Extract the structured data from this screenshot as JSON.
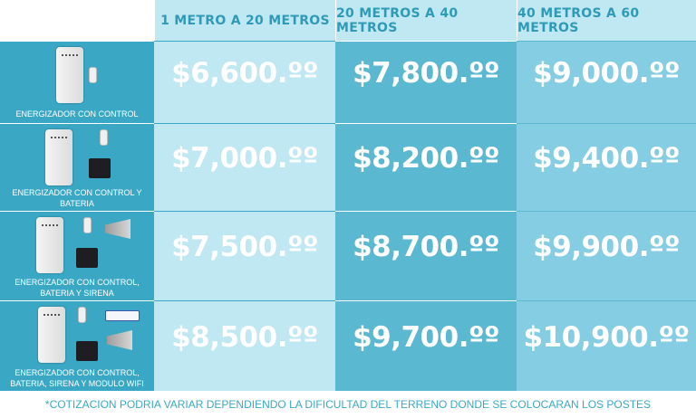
{
  "headers": [
    "1 METRO A 20 METROS",
    "20 METROS A 40 METROS",
    "40 METROS A 60 METROS"
  ],
  "rows": [
    {
      "label": "ENERGIZADOR CON CONTROL",
      "prices": [
        "$6,600.ºº",
        "$7,800.ºº",
        "$9,000.ºº"
      ]
    },
    {
      "label": "ENERGIZADOR CON CONTROL Y BATERIA",
      "prices": [
        "$7,000.ºº",
        "$8,200.ºº",
        "$9,400.ºº"
      ]
    },
    {
      "label": "ENERGIZADOR CON CONTROL, BATERIA Y SIRENA",
      "prices": [
        "$7,500.ºº",
        "$8,700.ºº",
        "$9,900.ºº"
      ]
    },
    {
      "label": "ENERGIZADOR CON CONTROL, BATERIA, SIRENA Y MODULO WIFI",
      "prices": [
        "$8,500.ºº",
        "$9,700.ºº",
        "$10,900.ºº"
      ]
    }
  ],
  "footnote": "*COTIZACION PODRIA VARIAR DEPENDIENDO LA DIFICULTAD DEL TERRENO DONDE SE COLOCARAN LOS POSTES",
  "icons": [
    "energizer-unit-icon",
    "remote-control-icon",
    "battery-icon",
    "siren-horn-icon",
    "wifi-module-icon"
  ],
  "colors": {
    "header_bg": "#bfe8f2",
    "header_text": "#2f9ab8",
    "product_bg": "#3aa8c5",
    "col1_bg": "#bfe8f2",
    "col2_bg": "#5bb8d1",
    "col3_bg": "#85cde2",
    "price_text": "#ffffff"
  }
}
